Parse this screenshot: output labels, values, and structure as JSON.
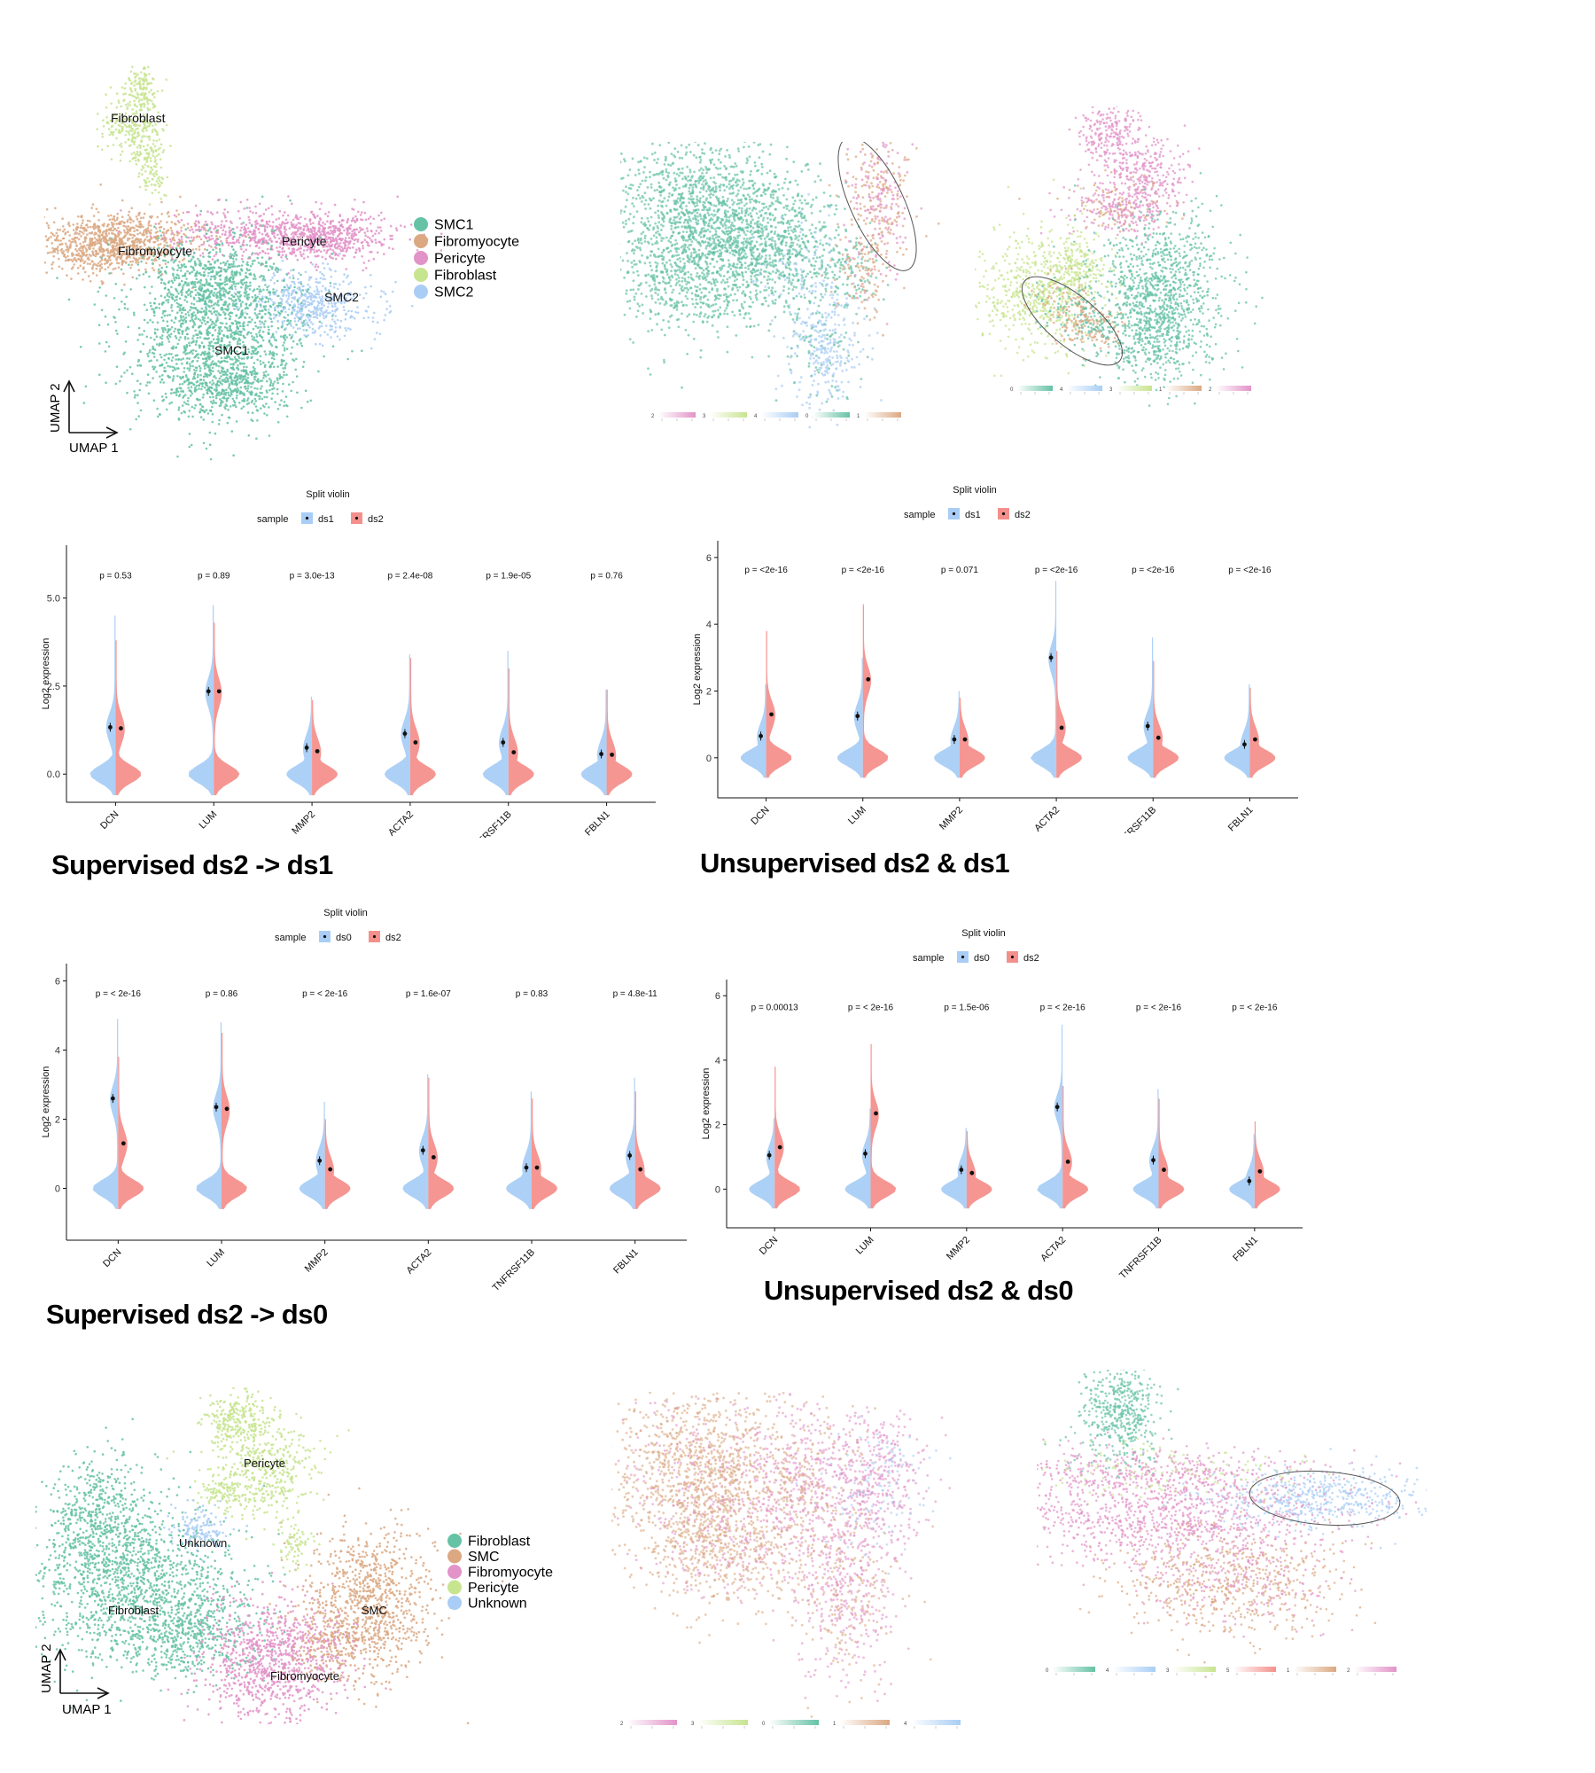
{
  "umap_top": {
    "xlabel": "UMAP 1",
    "ylabel": "UMAP 2",
    "legend": [
      {
        "name": "SMC1",
        "color": "#66c2a5"
      },
      {
        "name": "Fibromyocyte",
        "color": "#dba882"
      },
      {
        "name": "Pericyte",
        "color": "#e293c8"
      },
      {
        "name": "Fibroblast",
        "color": "#c7e48f"
      },
      {
        "name": "SMC2",
        "color": "#a9cdf5"
      }
    ],
    "labels": {
      "fibroblast": "Fibroblast",
      "fibromyocyte": "Fibromyocyte",
      "pericyte": "Pericyte",
      "smc2": "SMC2",
      "smc1": "SMC1"
    }
  },
  "umap_bottom": {
    "xlabel": "UMAP 1",
    "ylabel": "UMAP 2",
    "legend": [
      {
        "name": "Fibroblast",
        "color": "#66c2a5"
      },
      {
        "name": "SMC",
        "color": "#dba882"
      },
      {
        "name": "Fibromyocyte",
        "color": "#e293c8"
      },
      {
        "name": "Pericyte",
        "color": "#c7e48f"
      },
      {
        "name": "Unknown",
        "color": "#a9cdf5"
      }
    ],
    "labels": {
      "pericyte": "Pericyte",
      "unknown": "Unknown",
      "fibroblast": "Fibroblast",
      "smc": "SMC",
      "fibromyocyte": "Fibromyocyte"
    }
  },
  "colorbars_top_mid": [
    "2",
    "3",
    "4",
    "0",
    "1"
  ],
  "colorbars_top_right": [
    "0",
    "4",
    "3",
    "1",
    "2"
  ],
  "colorbars_bottom_mid": [
    "2",
    "3",
    "0",
    "1",
    "4"
  ],
  "colorbars_bottom_right": [
    "0",
    "4",
    "3",
    "5",
    "1",
    "2"
  ],
  "titles": {
    "p1": "Supervised ds2 -> ds1",
    "p2": "Unsupervised ds2 & ds1",
    "p3": "Supervised ds2 -> ds0",
    "p4": "Unsupervised ds2 & ds0"
  },
  "chart_data": [
    {
      "type": "violin",
      "title": "Split violin",
      "legend_title": "sample",
      "series": [
        {
          "name": "ds1",
          "color": "#a9cdf5"
        },
        {
          "name": "ds2",
          "color": "#f4908c"
        }
      ],
      "ylabel": "Log2 expression",
      "ylim": [
        -0.8,
        6.5
      ],
      "yticks": [
        "0.0",
        "2.5",
        "5.0"
      ],
      "ytick_values": [
        0,
        2.5,
        5
      ],
      "categories": [
        "DCN",
        "LUM",
        "MMP2",
        "ACTA2",
        "TNFRSF11B",
        "FBLN1"
      ],
      "pvalues": [
        "p = 0.53",
        "p = 0.89",
        "p = 3.0e-13",
        "p = 2.4e-08",
        "p = 1.9e-05",
        "p = 0.76"
      ],
      "means_a": [
        1.33,
        2.35,
        0.75,
        1.15,
        0.9,
        0.57
      ],
      "means_b": [
        1.3,
        2.35,
        0.65,
        0.9,
        0.62,
        0.55
      ],
      "max_a": [
        4.5,
        4.8,
        2.2,
        3.4,
        3.5,
        2.4
      ],
      "max_b": [
        3.8,
        4.3,
        2.1,
        3.3,
        3.0,
        2.4
      ]
    },
    {
      "type": "violin",
      "title": "Split violin",
      "legend_title": "sample",
      "series": [
        {
          "name": "ds1",
          "color": "#a9cdf5"
        },
        {
          "name": "ds2",
          "color": "#f4908c"
        }
      ],
      "ylabel": "Log2 expression",
      "ylim": [
        -1.2,
        6.5
      ],
      "yticks": [
        "0",
        "2",
        "4",
        "6"
      ],
      "ytick_values": [
        0,
        2,
        4,
        6
      ],
      "categories": [
        "DCN",
        "LUM",
        "MMP2",
        "ACTA2",
        "TNFRSF11B",
        "FBLN1"
      ],
      "pvalues": [
        "p = <2e-16",
        "p = <2e-16",
        "p = 0.071",
        "p = <2e-16",
        "p = <2e-16",
        "p = <2e-16"
      ],
      "means_a": [
        0.65,
        1.25,
        0.55,
        3.0,
        0.95,
        0.4
      ],
      "means_b": [
        1.3,
        2.35,
        0.55,
        0.9,
        0.6,
        0.55
      ],
      "max_a": [
        2.2,
        3.0,
        2.0,
        5.3,
        3.6,
        2.2
      ],
      "max_b": [
        3.8,
        4.6,
        1.8,
        3.2,
        2.9,
        2.1
      ]
    },
    {
      "type": "violin",
      "title": "Split violin",
      "legend_title": "sample",
      "series": [
        {
          "name": "ds0",
          "color": "#a9cdf5"
        },
        {
          "name": "ds2",
          "color": "#f4908c"
        }
      ],
      "ylabel": "Log2 expression",
      "ylim": [
        -1.5,
        6.5
      ],
      "yticks": [
        "0",
        "2",
        "4",
        "6"
      ],
      "ytick_values": [
        0,
        2,
        4,
        6
      ],
      "categories": [
        "DCN",
        "LUM",
        "MMP2",
        "ACTA2",
        "TNFRSF11B",
        "FBLN1"
      ],
      "pvalues": [
        "p = < 2e-16",
        "p = 0.86",
        "p = < 2e-16",
        "p = 1.6e-07",
        "p = 0.83",
        "p = 4.8e-11"
      ],
      "means_a": [
        2.6,
        2.35,
        0.8,
        1.1,
        0.6,
        0.95
      ],
      "means_b": [
        1.3,
        2.3,
        0.55,
        0.9,
        0.6,
        0.55
      ],
      "max_a": [
        4.9,
        4.8,
        2.5,
        3.3,
        2.8,
        3.2
      ],
      "max_b": [
        3.8,
        4.5,
        2.0,
        3.2,
        2.6,
        2.8
      ]
    },
    {
      "type": "violin",
      "title": "Split violin",
      "legend_title": "sample",
      "series": [
        {
          "name": "ds0",
          "color": "#a9cdf5"
        },
        {
          "name": "ds2",
          "color": "#f4908c"
        }
      ],
      "ylabel": "Log2 expression",
      "ylim": [
        -1.2,
        6.5
      ],
      "yticks": [
        "0",
        "2",
        "4",
        "6"
      ],
      "ytick_values": [
        0,
        2,
        4,
        6
      ],
      "categories": [
        "DCN",
        "LUM",
        "MMP2",
        "ACTA2",
        "TNFRSF11B",
        "FBLN1"
      ],
      "pvalues": [
        "p = 0.00013",
        "p = < 2e-16",
        "p = 1.5e-06",
        "p = < 2e-16",
        "p = < 2e-16",
        "p = < 2e-16"
      ],
      "means_a": [
        1.05,
        1.1,
        0.6,
        2.55,
        0.9,
        0.25
      ],
      "means_b": [
        1.3,
        2.35,
        0.5,
        0.85,
        0.6,
        0.55
      ],
      "max_a": [
        2.2,
        2.5,
        1.9,
        5.1,
        3.1,
        1.7
      ],
      "max_b": [
        3.8,
        4.5,
        1.8,
        3.2,
        2.8,
        2.1
      ]
    }
  ]
}
